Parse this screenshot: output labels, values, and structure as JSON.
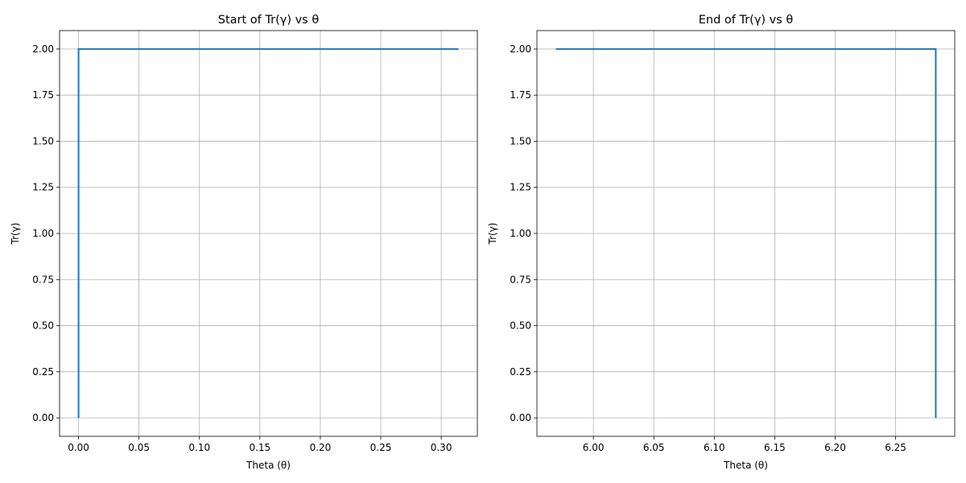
{
  "chart_data": [
    {
      "type": "line",
      "title": "Start of Tr(γ) vs θ",
      "xlabel": "Theta (θ)",
      "ylabel": "Tr(γ)",
      "xlim": [
        -0.0157,
        0.3299
      ],
      "ylim": [
        -0.1,
        2.1
      ],
      "xticks": [
        0.0,
        0.05,
        0.1,
        0.15,
        0.2,
        0.25,
        0.3
      ],
      "xtick_labels": [
        "0.00",
        "0.05",
        "0.10",
        "0.15",
        "0.20",
        "0.25",
        "0.30"
      ],
      "yticks": [
        0.0,
        0.25,
        0.5,
        0.75,
        1.0,
        1.25,
        1.5,
        1.75,
        2.0
      ],
      "ytick_labels": [
        "0.00",
        "0.25",
        "0.50",
        "0.75",
        "1.00",
        "1.25",
        "1.50",
        "1.75",
        "2.00"
      ],
      "grid": true,
      "color": "#1f77b4",
      "x": [
        0.0,
        0.0,
        0.3142
      ],
      "y": [
        0.0,
        2.0,
        2.0
      ]
    },
    {
      "type": "line",
      "title": "End of Tr(γ) vs θ",
      "xlabel": "Theta (θ)",
      "ylabel": "Tr(γ)",
      "xlim": [
        5.9533,
        6.2989
      ],
      "ylim": [
        -0.1,
        2.1
      ],
      "xticks": [
        6.0,
        6.05,
        6.1,
        6.15,
        6.2,
        6.25
      ],
      "xtick_labels": [
        "6.00",
        "6.05",
        "6.10",
        "6.15",
        "6.20",
        "6.25"
      ],
      "yticks": [
        0.0,
        0.25,
        0.5,
        0.75,
        1.0,
        1.25,
        1.5,
        1.75,
        2.0
      ],
      "ytick_labels": [
        "0.00",
        "0.25",
        "0.50",
        "0.75",
        "1.00",
        "1.25",
        "1.50",
        "1.75",
        "2.00"
      ],
      "grid": true,
      "color": "#1f77b4",
      "x": [
        5.969,
        6.2832,
        6.2832
      ],
      "y": [
        2.0,
        2.0,
        0.0
      ]
    }
  ]
}
